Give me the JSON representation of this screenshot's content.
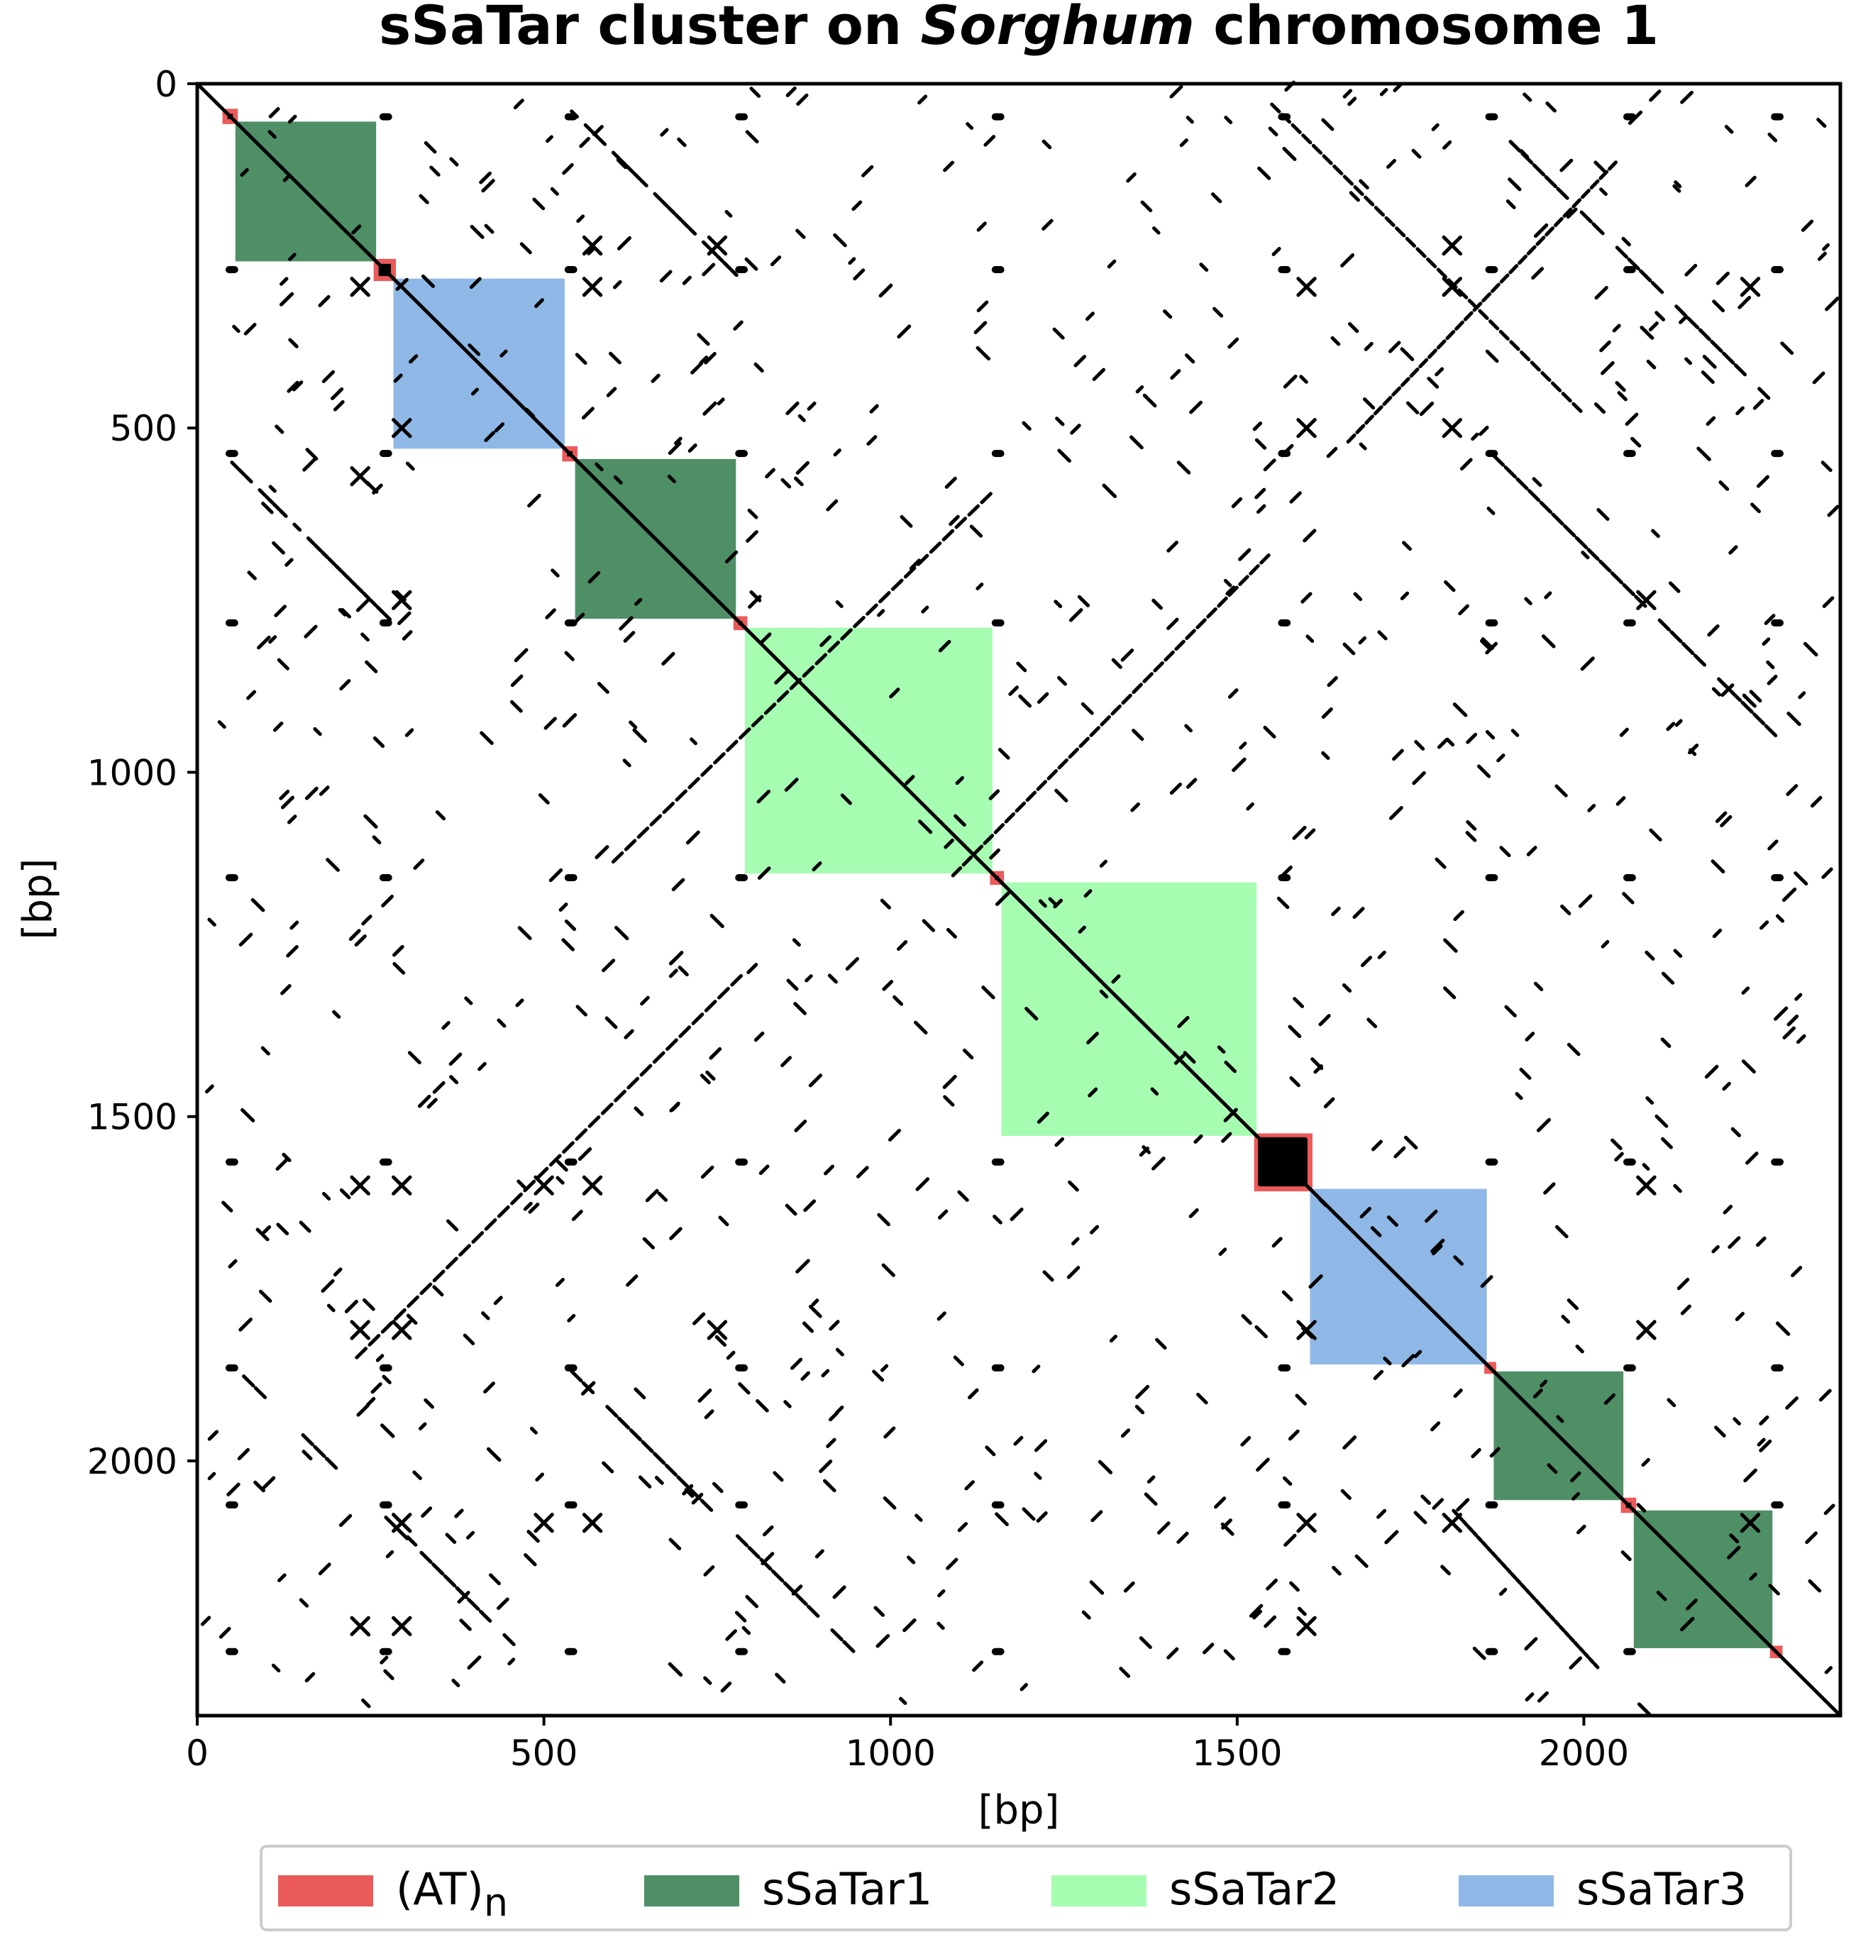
{
  "chart_data": {
    "type": "dot_plot",
    "title_parts": [
      {
        "text": "sSaTar cluster on ",
        "italic": false
      },
      {
        "text": "Sorghum",
        "italic": true
      },
      {
        "text": " chromosome 1",
        "italic": false
      }
    ],
    "xlabel": "[bp]",
    "ylabel": "[bp]",
    "xlim": [
      0,
      2370
    ],
    "ylim": [
      2370,
      0
    ],
    "x_ticks": [
      0,
      500,
      1000,
      1500,
      2000
    ],
    "y_ticks": [
      0,
      500,
      1000,
      1500,
      2000
    ],
    "x_tick_labels": [
      "0",
      "500",
      "1000",
      "1500",
      "2000"
    ],
    "y_tick_labels": [
      "0",
      "500",
      "1000",
      "1500",
      "2000"
    ],
    "grid": false,
    "legend_position": "bottom",
    "colors": {
      "AT": "#eb5a5a",
      "sSaTar1": "#4f8f66",
      "sSaTar2": "#a6fdb2",
      "sSaTar3": "#8fb8e6",
      "dots": "#000000"
    },
    "legend": [
      {
        "key": "AT",
        "label": "(AT)",
        "sub": "n"
      },
      {
        "key": "sSaTar1",
        "label": "sSaTar1",
        "sub": ""
      },
      {
        "key": "sSaTar2",
        "label": "sSaTar2",
        "sub": ""
      },
      {
        "key": "sSaTar3",
        "label": "sSaTar3",
        "sub": ""
      }
    ],
    "annotations": [
      {
        "type": "AT",
        "start": 40,
        "end": 55
      },
      {
        "type": "sSaTar1",
        "start": 55,
        "end": 258
      },
      {
        "type": "AT",
        "start": 258,
        "end": 283
      },
      {
        "type": "sSaTar3",
        "start": 283,
        "end": 530
      },
      {
        "type": "AT",
        "start": 530,
        "end": 545
      },
      {
        "type": "sSaTar1",
        "start": 545,
        "end": 777
      },
      {
        "type": "AT",
        "start": 777,
        "end": 790
      },
      {
        "type": "sSaTar2",
        "start": 790,
        "end": 1147
      },
      {
        "type": "AT",
        "start": 1147,
        "end": 1160
      },
      {
        "type": "sSaTar2",
        "start": 1160,
        "end": 1528
      },
      {
        "type": "AT",
        "start": 1528,
        "end": 1605
      },
      {
        "type": "sSaTar3",
        "start": 1605,
        "end": 1860
      },
      {
        "type": "AT",
        "start": 1860,
        "end": 1870
      },
      {
        "type": "sSaTar1",
        "start": 1870,
        "end": 2057
      },
      {
        "type": "AT",
        "start": 2057,
        "end": 2072
      },
      {
        "type": "sSaTar1",
        "start": 2072,
        "end": 2272
      },
      {
        "type": "AT",
        "start": 2272,
        "end": 2283
      }
    ],
    "at_positions": [
      48,
      270,
      537,
      783,
      1153,
      1566,
      1865,
      2064,
      2277
    ],
    "repeat_positions": [
      235,
      295,
      500,
      570,
      750,
      1600,
      1810,
      2090,
      2240
    ],
    "noise_count": 900,
    "noise_seed": 17
  }
}
